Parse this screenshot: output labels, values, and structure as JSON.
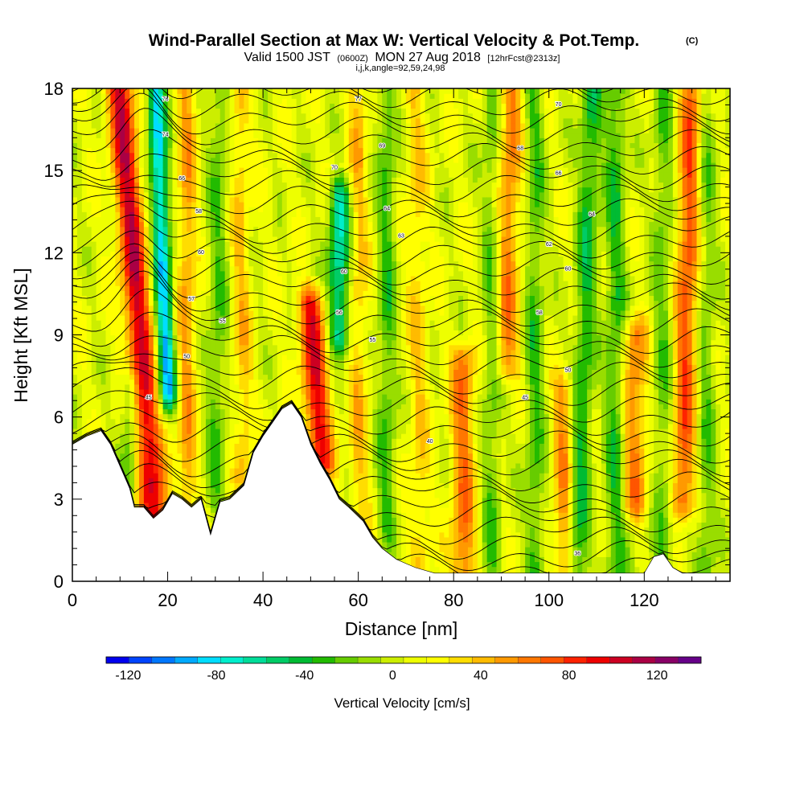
{
  "title": {
    "main": "Wind-Parallel Section at Max W: Vertical Velocity & Pot.Temp.",
    "mark": "(C)",
    "valid_prefix": "Valid 1500 JST",
    "valid_utc": "(0600Z)",
    "valid_date": "MON 27 Aug 2018",
    "forecast": "[12hrFcst@2313z]",
    "ijk": "i,j,k,angle=92,59,24,98"
  },
  "chart_data": {
    "type": "heatmap",
    "xlabel": "Distance [nm]",
    "ylabel": "Height [Kft MSL]",
    "xlim": [
      0,
      138
    ],
    "ylim": [
      0,
      18
    ],
    "x_ticks": [
      0,
      20,
      40,
      60,
      80,
      100,
      120
    ],
    "y_ticks": [
      0,
      3,
      6,
      9,
      12,
      15,
      18
    ],
    "grid": false,
    "colorbar": {
      "label": "Vertical Velocity [cm/s]",
      "range": [
        -130,
        140
      ],
      "tick_values": [
        -120,
        -80,
        -40,
        0,
        40,
        80,
        120
      ],
      "tick_labels": [
        "-120",
        "-80",
        "-40",
        "0",
        "40",
        "80",
        "120"
      ],
      "colors": [
        "#0000ee",
        "#0044ff",
        "#0077ff",
        "#00aaff",
        "#00ddff",
        "#00eecc",
        "#00dd99",
        "#00cc66",
        "#00bb33",
        "#22bb00",
        "#66cc00",
        "#99dd00",
        "#ccee00",
        "#eeff00",
        "#ffff00",
        "#ffdd00",
        "#ffbb00",
        "#ff9900",
        "#ff7700",
        "#ff5500",
        "#ff2200",
        "#ee0000",
        "#cc0022",
        "#aa0044",
        "#880066",
        "#660088"
      ]
    },
    "terrain_profile": [
      {
        "x": 0,
        "y": 5.0
      },
      {
        "x": 3,
        "y": 5.3
      },
      {
        "x": 6,
        "y": 5.5
      },
      {
        "x": 8,
        "y": 5.0
      },
      {
        "x": 10,
        "y": 4.2
      },
      {
        "x": 12,
        "y": 3.4
      },
      {
        "x": 13,
        "y": 2.7
      },
      {
        "x": 15,
        "y": 2.7
      },
      {
        "x": 17,
        "y": 2.3
      },
      {
        "x": 19,
        "y": 2.6
      },
      {
        "x": 21,
        "y": 3.2
      },
      {
        "x": 23,
        "y": 3.0
      },
      {
        "x": 25,
        "y": 2.7
      },
      {
        "x": 27,
        "y": 3.0
      },
      {
        "x": 29,
        "y": 1.7
      },
      {
        "x": 31,
        "y": 2.9
      },
      {
        "x": 33,
        "y": 3.0
      },
      {
        "x": 36,
        "y": 3.5
      },
      {
        "x": 38,
        "y": 4.7
      },
      {
        "x": 40,
        "y": 5.3
      },
      {
        "x": 42,
        "y": 5.8
      },
      {
        "x": 44,
        "y": 6.3
      },
      {
        "x": 46,
        "y": 6.5
      },
      {
        "x": 48,
        "y": 6.0
      },
      {
        "x": 50,
        "y": 5.0
      },
      {
        "x": 52,
        "y": 4.3
      },
      {
        "x": 54,
        "y": 3.7
      },
      {
        "x": 56,
        "y": 3.0
      },
      {
        "x": 58,
        "y": 2.7
      },
      {
        "x": 61,
        "y": 2.2
      },
      {
        "x": 63,
        "y": 1.6
      },
      {
        "x": 65,
        "y": 1.2
      },
      {
        "x": 68,
        "y": 0.8
      },
      {
        "x": 72,
        "y": 0.5
      },
      {
        "x": 76,
        "y": 0.3
      },
      {
        "x": 120,
        "y": 0.3
      },
      {
        "x": 122,
        "y": 0.9
      },
      {
        "x": 124,
        "y": 1.0
      },
      {
        "x": 126,
        "y": 0.5
      },
      {
        "x": 128,
        "y": 0.3
      },
      {
        "x": 138,
        "y": 0.3
      }
    ],
    "vertical_velocity_features": [
      {
        "x_base": 17.0,
        "x_top": 10.0,
        "width": 2.8,
        "peak": 95,
        "y_from": 2.3,
        "y_to": 18
      },
      {
        "x_base": 20.0,
        "x_top": 17.5,
        "width": 1.8,
        "peak": -95,
        "y_from": 7.0,
        "y_to": 18
      },
      {
        "x_base": 12.0,
        "x_top": 12.0,
        "width": 2.0,
        "peak": -40,
        "y_from": 3.4,
        "y_to": 7.0
      },
      {
        "x_base": 24.0,
        "x_top": 24.0,
        "width": 2.0,
        "peak": 40,
        "y_from": 3.0,
        "y_to": 18
      },
      {
        "x_base": 30.0,
        "x_top": 31.0,
        "width": 2.2,
        "peak": -30,
        "y_from": 3.0,
        "y_to": 18
      },
      {
        "x_base": 36.0,
        "x_top": 35.0,
        "width": 2.0,
        "peak": 30,
        "y_from": 4.0,
        "y_to": 18
      },
      {
        "x_base": 52.0,
        "x_top": 50.0,
        "width": 2.8,
        "peak": 85,
        "y_from": 4.5,
        "y_to": 10
      },
      {
        "x_base": 56.0,
        "x_top": 56.0,
        "width": 2.2,
        "peak": -75,
        "y_from": 9.0,
        "y_to": 14
      },
      {
        "x_base": 60.0,
        "x_top": 60.0,
        "width": 2.0,
        "peak": 30,
        "y_from": 2.0,
        "y_to": 18
      },
      {
        "x_base": 66.0,
        "x_top": 66.0,
        "width": 2.0,
        "peak": -35,
        "y_from": 2.0,
        "y_to": 18
      },
      {
        "x_base": 73.0,
        "x_top": 72.0,
        "width": 2.2,
        "peak": 25,
        "y_from": 0.5,
        "y_to": 18
      },
      {
        "x_base": 82.0,
        "x_top": 82.0,
        "width": 2.5,
        "peak": 55,
        "y_from": 0.3,
        "y_to": 8
      },
      {
        "x_base": 88.0,
        "x_top": 88.0,
        "width": 2.0,
        "peak": -30,
        "y_from": 0.3,
        "y_to": 18
      },
      {
        "x_base": 91.0,
        "x_top": 92.0,
        "width": 2.5,
        "peak": 50,
        "y_from": 8.0,
        "y_to": 18
      },
      {
        "x_base": 97.0,
        "x_top": 97.0,
        "width": 2.0,
        "peak": -35,
        "y_from": 0.3,
        "y_to": 18
      },
      {
        "x_base": 103.0,
        "x_top": 103.0,
        "width": 2.0,
        "peak": 45,
        "y_from": 0.3,
        "y_to": 7
      },
      {
        "x_base": 106.0,
        "x_top": 109.0,
        "width": 2.2,
        "peak": -45,
        "y_from": 0.3,
        "y_to": 18
      },
      {
        "x_base": 114.0,
        "x_top": 114.0,
        "width": 2.2,
        "peak": -40,
        "y_from": 0.3,
        "y_to": 18
      },
      {
        "x_base": 118.0,
        "x_top": 118.0,
        "width": 2.6,
        "peak": 50,
        "y_from": 3.0,
        "y_to": 9
      },
      {
        "x_base": 124.0,
        "x_top": 124.0,
        "width": 2.2,
        "peak": -30,
        "y_from": 0.3,
        "y_to": 18
      },
      {
        "x_base": 128.0,
        "x_top": 130.0,
        "width": 2.5,
        "peak": 65,
        "y_from": 3.0,
        "y_to": 18
      },
      {
        "x_base": 133.0,
        "x_top": 133.0,
        "width": 2.0,
        "peak": -30,
        "y_from": 0.3,
        "y_to": 18
      }
    ],
    "isentrope_labels": [
      {
        "x": 19.5,
        "y": 17.6,
        "text": "76"
      },
      {
        "x": 19.5,
        "y": 16.3,
        "text": "74"
      },
      {
        "x": 23.0,
        "y": 14.7,
        "text": "66"
      },
      {
        "x": 26.5,
        "y": 13.5,
        "text": "58"
      },
      {
        "x": 27.0,
        "y": 12.0,
        "text": "60"
      },
      {
        "x": 25.0,
        "y": 10.3,
        "text": "57"
      },
      {
        "x": 31.5,
        "y": 9.5,
        "text": "55"
      },
      {
        "x": 24.0,
        "y": 8.2,
        "text": "50"
      },
      {
        "x": 16.0,
        "y": 6.7,
        "text": "45"
      },
      {
        "x": 60.0,
        "y": 17.6,
        "text": "77"
      },
      {
        "x": 65.0,
        "y": 15.9,
        "text": "69"
      },
      {
        "x": 55.0,
        "y": 15.1,
        "text": "70"
      },
      {
        "x": 66.0,
        "y": 13.6,
        "text": "64"
      },
      {
        "x": 69.0,
        "y": 12.6,
        "text": "63"
      },
      {
        "x": 57.0,
        "y": 11.3,
        "text": "60"
      },
      {
        "x": 56.0,
        "y": 9.8,
        "text": "56"
      },
      {
        "x": 63.0,
        "y": 8.8,
        "text": "55"
      },
      {
        "x": 94.0,
        "y": 15.8,
        "text": "68"
      },
      {
        "x": 102.0,
        "y": 17.4,
        "text": "70"
      },
      {
        "x": 102.0,
        "y": 14.9,
        "text": "66"
      },
      {
        "x": 109.0,
        "y": 13.4,
        "text": "64"
      },
      {
        "x": 100.0,
        "y": 12.3,
        "text": "62"
      },
      {
        "x": 104.0,
        "y": 11.4,
        "text": "60"
      },
      {
        "x": 98.0,
        "y": 9.8,
        "text": "58"
      },
      {
        "x": 104.0,
        "y": 7.7,
        "text": "50"
      },
      {
        "x": 95.0,
        "y": 6.7,
        "text": "45"
      },
      {
        "x": 75.0,
        "y": 5.1,
        "text": "40"
      },
      {
        "x": 106.0,
        "y": 1.0,
        "text": "36"
      }
    ]
  }
}
